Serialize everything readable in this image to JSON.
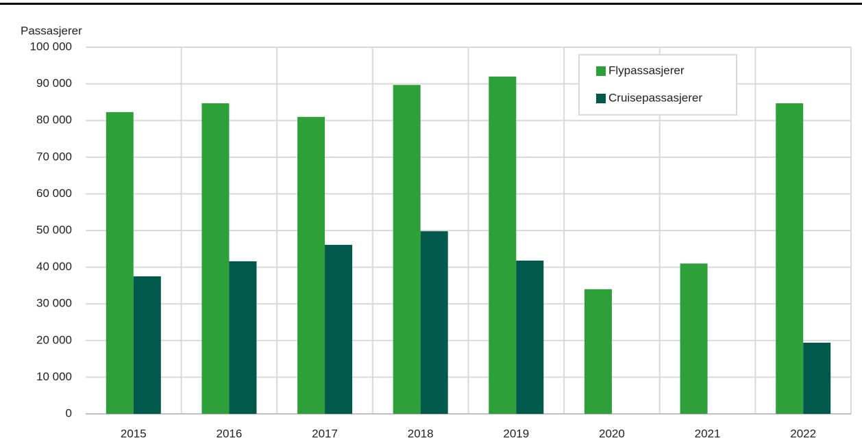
{
  "chart_data": {
    "type": "bar",
    "ylabel": "Passasjerer",
    "categories": [
      "2015",
      "2016",
      "2017",
      "2018",
      "2019",
      "2020",
      "2021",
      "2022"
    ],
    "series": [
      {
        "name": "Flypassasjerer",
        "color": "#2ea03a",
        "values": [
          82300,
          84700,
          81000,
          89700,
          92000,
          34000,
          41000,
          84700
        ]
      },
      {
        "name": "Cruisepassasjerer",
        "color": "#00594a",
        "values": [
          37500,
          41600,
          46100,
          49800,
          41800,
          null,
          null,
          19400
        ]
      }
    ],
    "ylim": [
      0,
      100000
    ],
    "yticks": [
      0,
      {
        "value": 10000,
        "label": "10 000"
      },
      {
        "value": 20000,
        "label": "20 000"
      },
      {
        "value": 30000,
        "label": "30 000"
      },
      {
        "value": 40000,
        "label": "40 000"
      },
      {
        "value": 50000,
        "label": "50 000"
      },
      {
        "value": 60000,
        "label": "60 000"
      },
      {
        "value": 70000,
        "label": "70 000"
      },
      {
        "value": 80000,
        "label": "80 000"
      },
      {
        "value": 90000,
        "label": "90 000"
      },
      {
        "value": 100000,
        "label": "100 000"
      }
    ],
    "grid": true,
    "legend": "upper right"
  }
}
